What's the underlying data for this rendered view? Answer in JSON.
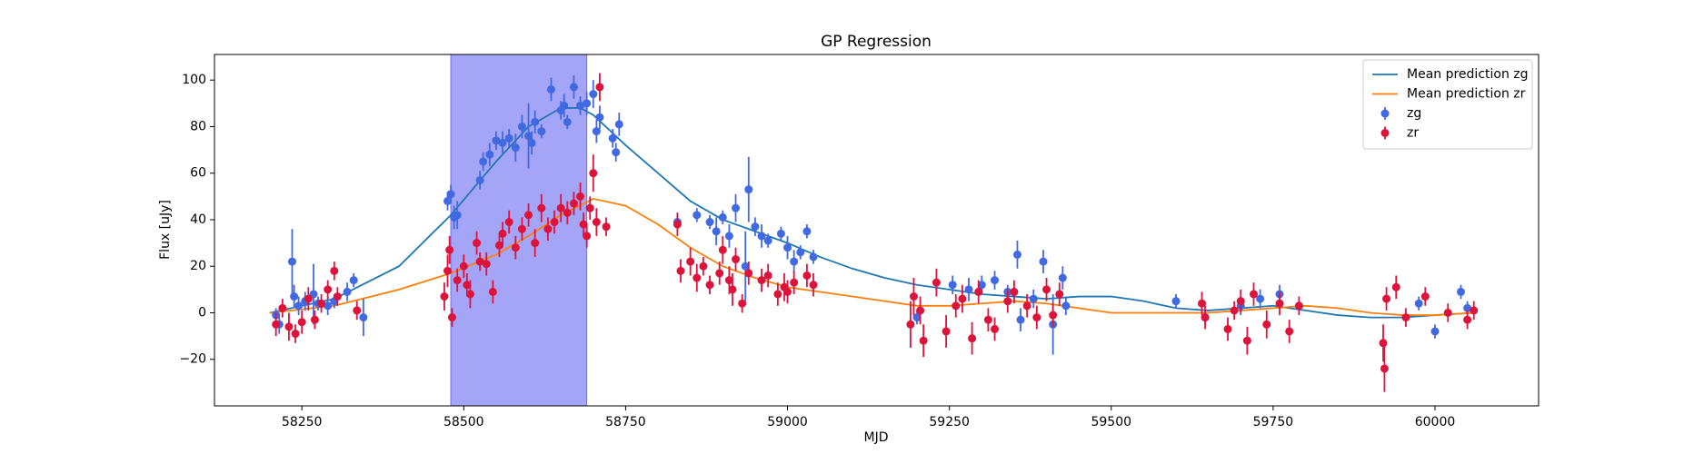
{
  "chart_data": {
    "type": "line",
    "title": "GP Regression",
    "x_label": "MJD",
    "y_label": "Flux [uJy]",
    "xlim": [
      58115,
      60160
    ],
    "ylim": [
      -40,
      111
    ],
    "xticks": [
      58250,
      58500,
      58750,
      59000,
      59250,
      59500,
      59750,
      60000
    ],
    "yticks": [
      {
        "value": -20,
        "label": "−20"
      },
      0,
      20,
      40,
      60,
      80,
      100
    ],
    "shaded_region": [
      58480,
      58690
    ],
    "shaded_color": "#a5a5f8",
    "legend": "upper right",
    "series": [
      {
        "name": "Mean prediction zg",
        "type": "line",
        "color": "#1f77b4",
        "x": [
          58200,
          58300,
          58400,
          58480,
          58550,
          58600,
          58650,
          58680,
          58700,
          58750,
          58800,
          58850,
          58900,
          58950,
          59000,
          59050,
          59100,
          59150,
          59200,
          59250,
          59300,
          59350,
          59400,
          59450,
          59500,
          59550,
          59600,
          59650,
          59700,
          59750,
          59800,
          59850,
          59900,
          59950,
          60000,
          60060
        ],
        "values": [
          0,
          6,
          20,
          42,
          65,
          80,
          88,
          88,
          85,
          72,
          60,
          48,
          40,
          35,
          30,
          24,
          19,
          15,
          12,
          10,
          8,
          7,
          6,
          7,
          7,
          5,
          2,
          1,
          2,
          3,
          1,
          -1,
          -2,
          -2,
          -1,
          0
        ]
      },
      {
        "name": "Mean prediction zr",
        "type": "line",
        "color": "#ff7f0e",
        "x": [
          58200,
          58300,
          58400,
          58480,
          58550,
          58600,
          58650,
          58700,
          58750,
          58800,
          58850,
          58900,
          58950,
          59000,
          59050,
          59100,
          59150,
          59200,
          59250,
          59300,
          59350,
          59400,
          59450,
          59500,
          59550,
          59600,
          59650,
          59700,
          59750,
          59800,
          59850,
          59900,
          59950,
          60000,
          60060
        ],
        "values": [
          0,
          3,
          10,
          17,
          25,
          33,
          42,
          49,
          46,
          38,
          28,
          20,
          15,
          11,
          9,
          7,
          5,
          3,
          3,
          4,
          5,
          4,
          2,
          0,
          0,
          0,
          0,
          1,
          2,
          3,
          2,
          0,
          -1,
          -1,
          0
        ]
      },
      {
        "name": "zg",
        "type": "errorbar",
        "color": "#4169e1",
        "x": [
          58210,
          58215,
          58235,
          58238,
          58245,
          58255,
          58268,
          58275,
          58290,
          58300,
          58320,
          58330,
          58345,
          58475,
          58480,
          58485,
          58490,
          58525,
          58530,
          58540,
          58550,
          58560,
          58570,
          58580,
          58590,
          58600,
          58605,
          58610,
          58620,
          58635,
          58650,
          58655,
          58660,
          58670,
          58680,
          58690,
          58700,
          58705,
          58710,
          58730,
          58735,
          58740,
          58830,
          58860,
          58880,
          58890,
          58900,
          58910,
          58920,
          58935,
          58940,
          58950,
          58960,
          58970,
          58990,
          59000,
          59010,
          59020,
          59030,
          59040,
          59200,
          59255,
          59280,
          59300,
          59320,
          59340,
          59355,
          59360,
          59380,
          59395,
          59410,
          59425,
          59430,
          59600,
          59645,
          59700,
          59730,
          59760,
          59975,
          60000,
          60040,
          60050
        ],
        "values": [
          -1,
          -5,
          22,
          7,
          3,
          5,
          8,
          4,
          3,
          5,
          9,
          14,
          -2,
          48,
          51,
          41,
          42,
          57,
          65,
          68,
          74,
          73,
          75,
          71,
          80,
          76,
          73,
          82,
          78,
          96,
          87,
          89,
          82,
          97,
          89,
          90,
          94,
          78,
          84,
          75,
          69,
          81,
          39,
          42,
          39,
          35,
          41,
          33,
          45,
          20,
          53,
          37,
          33,
          31,
          34,
          28,
          22,
          26,
          35,
          24,
          -2,
          12,
          10,
          12,
          14,
          9,
          25,
          -3,
          6,
          22,
          -5,
          15,
          3,
          5,
          -2,
          3,
          6,
          8,
          4,
          -8,
          9,
          2
        ],
        "errors": [
          3,
          4,
          14,
          5,
          4,
          4,
          13,
          3,
          4,
          3,
          4,
          3,
          8,
          4,
          4,
          5,
          6,
          4,
          4,
          5,
          4,
          5,
          4,
          6,
          5,
          14,
          5,
          5,
          3,
          5,
          4,
          5,
          3,
          5,
          4,
          5,
          6,
          5,
          5,
          4,
          4,
          5,
          4,
          3,
          3,
          6,
          3,
          5,
          6,
          15,
          14,
          4,
          5,
          3,
          3,
          5,
          5,
          3,
          3,
          3,
          3,
          4,
          5,
          4,
          4,
          3,
          6,
          5,
          4,
          5,
          13,
          5,
          4,
          3,
          3,
          4,
          4,
          4,
          3,
          3,
          3,
          3
        ]
      },
      {
        "name": "zr",
        "type": "errorbar",
        "color": "#dc143c",
        "x": [
          58210,
          58220,
          58230,
          58240,
          58250,
          58260,
          58270,
          58280,
          58290,
          58300,
          58305,
          58335,
          58470,
          58475,
          58478,
          58482,
          58490,
          58500,
          58505,
          58510,
          58520,
          58525,
          58535,
          58545,
          58555,
          58560,
          58570,
          58580,
          58590,
          58600,
          58610,
          58620,
          58630,
          58640,
          58650,
          58660,
          58670,
          58680,
          58685,
          58690,
          58695,
          58700,
          58705,
          58710,
          58720,
          58830,
          58835,
          58850,
          58860,
          58870,
          58880,
          58895,
          58900,
          58910,
          58915,
          58920,
          58930,
          58940,
          58960,
          58970,
          58985,
          58995,
          59000,
          59010,
          59030,
          59040,
          59190,
          59195,
          59205,
          59210,
          59230,
          59245,
          59260,
          59270,
          59285,
          59295,
          59310,
          59320,
          59340,
          59350,
          59370,
          59385,
          59400,
          59410,
          59420,
          59640,
          59645,
          59680,
          59690,
          59700,
          59710,
          59720,
          59740,
          59760,
          59775,
          59790,
          59920,
          59922,
          59925,
          59940,
          59955,
          59985,
          60020,
          60050,
          60060
        ],
        "values": [
          -5,
          2,
          -6,
          -9,
          -4,
          6,
          -3,
          4,
          10,
          18,
          7,
          1,
          7,
          18,
          27,
          -2,
          14,
          20,
          12,
          8,
          30,
          22,
          21,
          9,
          29,
          34,
          39,
          28,
          36,
          42,
          30,
          45,
          36,
          39,
          45,
          43,
          47,
          50,
          38,
          33,
          45,
          60,
          39,
          97,
          37,
          38,
          18,
          22,
          15,
          20,
          12,
          17,
          27,
          14,
          10,
          23,
          4,
          17,
          14,
          16,
          8,
          11,
          9,
          13,
          16,
          12,
          -5,
          7,
          1,
          -12,
          13,
          -8,
          3,
          6,
          -11,
          9,
          -3,
          -7,
          5,
          9,
          3,
          -2,
          10,
          -1,
          8,
          4,
          -2,
          -7,
          1,
          5,
          -12,
          8,
          -5,
          4,
          -8,
          3,
          -13,
          -24,
          6,
          11,
          -2,
          7,
          0,
          -3,
          1
        ],
        "errors": [
          5,
          4,
          6,
          4,
          5,
          5,
          4,
          4,
          4,
          4,
          4,
          4,
          6,
          7,
          6,
          4,
          5,
          5,
          5,
          6,
          5,
          4,
          5,
          5,
          5,
          5,
          5,
          5,
          5,
          5,
          6,
          6,
          5,
          5,
          6,
          5,
          5,
          6,
          5,
          5,
          5,
          8,
          6,
          6,
          4,
          5,
          5,
          6,
          6,
          4,
          4,
          5,
          6,
          6,
          7,
          5,
          4,
          5,
          5,
          5,
          5,
          6,
          5,
          5,
          5,
          5,
          10,
          8,
          6,
          7,
          6,
          7,
          5,
          6,
          7,
          5,
          5,
          5,
          5,
          5,
          5,
          5,
          5,
          5,
          5,
          5,
          5,
          5,
          4,
          5,
          6,
          5,
          6,
          5,
          5,
          4,
          8,
          10,
          5,
          5,
          4,
          4,
          4,
          4,
          4
        ]
      }
    ]
  }
}
